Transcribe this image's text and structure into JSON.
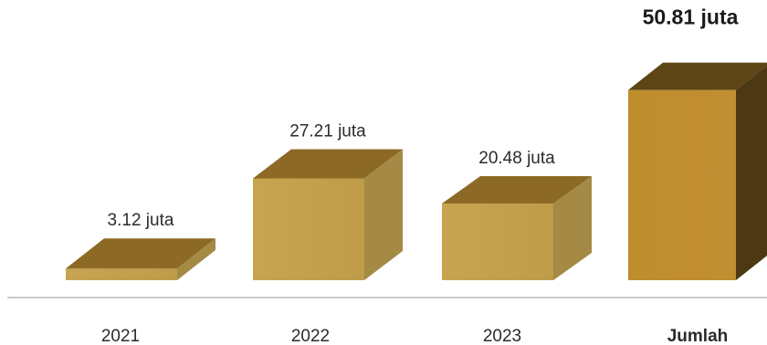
{
  "chart_data": {
    "type": "bar",
    "categories": [
      "2021",
      "2022",
      "2023",
      "Jumlah"
    ],
    "values": [
      3.12,
      27.21,
      20.48,
      50.81
    ],
    "value_labels": [
      "3.12 juta",
      "27.21 juta",
      "20.48 juta",
      "50.81 juta"
    ],
    "unit": "juta",
    "total_index": 3,
    "colors": {
      "year_front": "#c7a450",
      "year_top": "#8c6a25",
      "year_side": "#a48a44",
      "total_front": "#bf8d2e",
      "total_top": "#5e4515",
      "total_side": "#4d3814",
      "baseline": "#b9b9b9"
    },
    "style": "3d-box"
  }
}
